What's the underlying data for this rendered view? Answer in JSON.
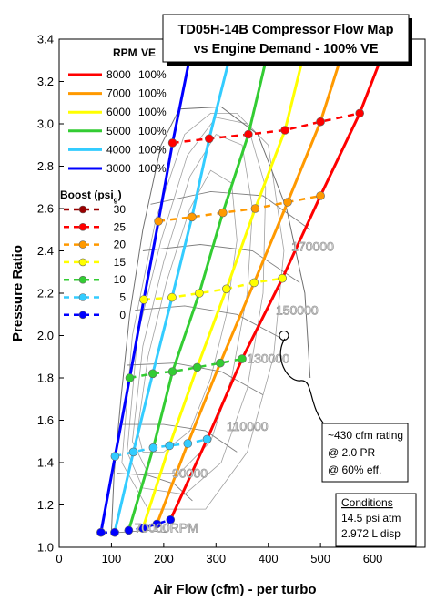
{
  "chart_data": {
    "type": "line",
    "title": "TD05H-14B Compressor Flow Map",
    "subtitle": "vs Engine Demand - 100% VE",
    "xlabel": "Air Flow (cfm) - per turbo",
    "ylabel": "Pressure Ratio",
    "xlim": [
      0,
      700
    ],
    "ylim": [
      1.0,
      3.4
    ],
    "x_ticks": [
      "0",
      "100",
      "200",
      "300",
      "400",
      "500",
      "600"
    ],
    "y_ticks": [
      "1.0",
      "1.2",
      "1.4",
      "1.6",
      "1.8",
      "2.0",
      "2.2",
      "2.4",
      "2.6",
      "2.8",
      "3.0",
      "3.2",
      "3.4"
    ],
    "grid": false,
    "legend_rpm": {
      "header_rpm": "RPM",
      "header_ve": "VE",
      "entries": [
        {
          "rpm": "8000",
          "ve": "100%",
          "color": "#ff0000"
        },
        {
          "rpm": "7000",
          "ve": "100%",
          "color": "#ff9900"
        },
        {
          "rpm": "6000",
          "ve": "100%",
          "color": "#ffff00"
        },
        {
          "rpm": "5000",
          "ve": "100%",
          "color": "#33cc33"
        },
        {
          "rpm": "4000",
          "ve": "100%",
          "color": "#33ccff"
        },
        {
          "rpm": "3000",
          "ve": "100%",
          "color": "#0000ff"
        }
      ]
    },
    "legend_boost": {
      "header": "Boost (psi",
      "header_sub": "g",
      "header_close": ")",
      "entries": [
        {
          "psi": "30",
          "color": "#990000"
        },
        {
          "psi": "25",
          "color": "#ff0000"
        },
        {
          "psi": "20",
          "color": "#ff9900"
        },
        {
          "psi": "15",
          "color": "#ffff00"
        },
        {
          "psi": "10",
          "color": "#33cc33"
        },
        {
          "psi": "5",
          "color": "#33ccff"
        },
        {
          "psi": "0",
          "color": "#0000ff"
        }
      ]
    },
    "rpm_series": [
      {
        "rpm": 3000,
        "color": "#0000ff",
        "points": [
          [
            80,
            1.07
          ],
          [
            107,
            1.43
          ],
          [
            135,
            1.8
          ],
          [
            162,
            2.17
          ],
          [
            190,
            2.54
          ],
          [
            217,
            2.91
          ],
          [
            257,
            3.4
          ]
        ]
      },
      {
        "rpm": 4000,
        "color": "#33ccff",
        "points": [
          [
            106,
            1.07
          ],
          [
            142,
            1.45
          ],
          [
            179,
            1.82
          ],
          [
            216,
            2.18
          ],
          [
            254,
            2.56
          ],
          [
            287,
            2.93
          ],
          [
            335,
            3.4
          ]
        ]
      },
      {
        "rpm": 5000,
        "color": "#33cc33",
        "points": [
          [
            133,
            1.08
          ],
          [
            180,
            1.47
          ],
          [
            217,
            1.83
          ],
          [
            268,
            2.2
          ],
          [
            313,
            2.58
          ],
          [
            362,
            2.95
          ],
          [
            405,
            3.4
          ]
        ]
      },
      {
        "rpm": 6000,
        "color": "#ffff00",
        "points": [
          [
            160,
            1.09
          ],
          [
            211,
            1.48
          ],
          [
            264,
            1.85
          ],
          [
            320,
            2.22
          ],
          [
            375,
            2.6
          ],
          [
            432,
            2.97
          ],
          [
            475,
            3.4
          ]
        ]
      },
      {
        "rpm": 7000,
        "color": "#ff9900",
        "points": [
          [
            187,
            1.11
          ],
          [
            246,
            1.49
          ],
          [
            308,
            1.87
          ],
          [
            373,
            2.25
          ],
          [
            437,
            2.63
          ],
          [
            500,
            3.01
          ],
          [
            550,
            3.4
          ]
        ]
      },
      {
        "rpm": 8000,
        "color": "#ff0000",
        "points": [
          [
            213,
            1.13
          ],
          [
            283,
            1.51
          ],
          [
            350,
            1.89
          ],
          [
            427,
            2.27
          ],
          [
            500,
            2.66
          ],
          [
            575,
            3.05
          ],
          [
            630,
            3.4
          ]
        ]
      }
    ],
    "boost_series": [
      {
        "psi": 0,
        "color": "#0000ff",
        "points": [
          [
            80,
            1.07
          ],
          [
            106,
            1.07
          ],
          [
            133,
            1.08
          ],
          [
            160,
            1.09
          ],
          [
            187,
            1.11
          ],
          [
            213,
            1.13
          ]
        ]
      },
      {
        "psi": 5,
        "color": "#33ccff",
        "points": [
          [
            107,
            1.43
          ],
          [
            142,
            1.45
          ],
          [
            180,
            1.47
          ],
          [
            211,
            1.48
          ],
          [
            246,
            1.49
          ],
          [
            283,
            1.51
          ]
        ]
      },
      {
        "psi": 10,
        "color": "#33cc33",
        "points": [
          [
            135,
            1.8
          ],
          [
            179,
            1.82
          ],
          [
            217,
            1.83
          ],
          [
            264,
            1.85
          ],
          [
            308,
            1.87
          ],
          [
            350,
            1.89
          ]
        ]
      },
      {
        "psi": 15,
        "color": "#ffff00",
        "points": [
          [
            162,
            2.17
          ],
          [
            216,
            2.18
          ],
          [
            268,
            2.2
          ],
          [
            320,
            2.22
          ],
          [
            373,
            2.25
          ],
          [
            427,
            2.27
          ]
        ]
      },
      {
        "psi": 20,
        "color": "#ff9900",
        "points": [
          [
            190,
            2.54
          ],
          [
            254,
            2.56
          ],
          [
            313,
            2.58
          ],
          [
            375,
            2.6
          ],
          [
            437,
            2.63
          ],
          [
            500,
            2.66
          ]
        ]
      },
      {
        "psi": 25,
        "color": "#ff0000",
        "points": [
          [
            217,
            2.91
          ],
          [
            287,
            2.93
          ],
          [
            362,
            2.95
          ],
          [
            432,
            2.97
          ],
          [
            500,
            3.01
          ],
          [
            575,
            3.05
          ]
        ]
      }
    ],
    "map_speed_labels": [
      {
        "text": "70000RPM",
        "x": 205,
        "y": 1.07
      },
      {
        "text": "90000",
        "x": 250,
        "y": 1.33
      },
      {
        "text": "110000",
        "x": 360,
        "y": 1.55
      },
      {
        "text": "130000",
        "x": 400,
        "y": 1.87
      },
      {
        "text": "150000",
        "x": 455,
        "y": 2.1
      },
      {
        "text": "170000",
        "x": 485,
        "y": 2.4
      }
    ],
    "rating_point": {
      "x": 430,
      "y": 2.0
    },
    "annotation": [
      "~430 cfm rating",
      "@ 2.0 PR",
      "@ 60% eff."
    ],
    "conditions": {
      "title": "Conditions",
      "lines": [
        "14.5 psi atm",
        "2.972 L disp"
      ]
    }
  }
}
